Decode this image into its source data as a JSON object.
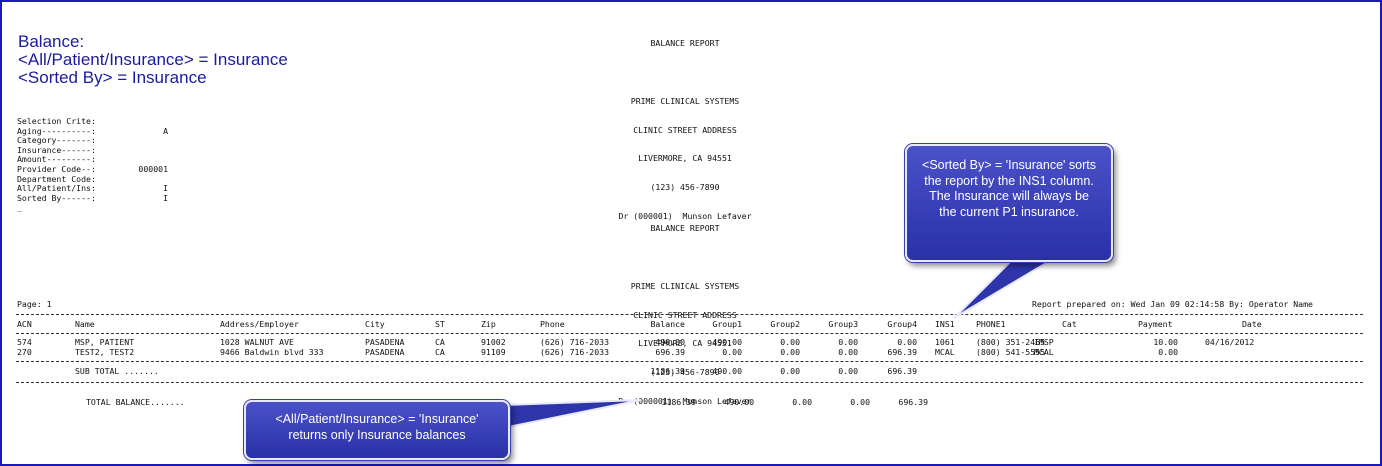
{
  "caption": {
    "line1": "Balance:",
    "line2": "<All/Patient/Insurance> = Insurance",
    "line3": "<Sorted By> = Insurance"
  },
  "header1": {
    "title": "BALANCE REPORT",
    "company": "PRIME CLINICAL SYSTEMS",
    "street": "CLINIC STREET ADDRESS",
    "city": "LIVERMORE, CA 94551",
    "phone": "(123) 456-7890",
    "doctor": "Dr (000001)  Munson Lefaver"
  },
  "header2": {
    "title": "BALANCE REPORT",
    "company": "PRIME CLINICAL SYSTEMS",
    "street": "CLINIC STREET ADDRESS",
    "city": "LIVERMORE, CA 94551",
    "phone": "(123) 456-7890",
    "doctor": "Dr (000001)  Munson Lefaver"
  },
  "criteria": [
    {
      "label": "Selection Crite:",
      "value": ""
    },
    {
      "label": "Aging----------:",
      "value": "A"
    },
    {
      "label": "Category-------:",
      "value": ""
    },
    {
      "label": "Insurance------:",
      "value": ""
    },
    {
      "label": "Amount---------:",
      "value": ""
    },
    {
      "label": "Provider Code--:",
      "value": "000001"
    },
    {
      "label": "Department Code:",
      "value": ""
    },
    {
      "label": "All/Patient/Ins:",
      "value": "I"
    },
    {
      "label": "Sorted By------:",
      "value": "I"
    },
    {
      "label": "_",
      "value": ""
    }
  ],
  "page_label": "Page: 1",
  "prepared": "Report prepared on: Wed Jan 09 02:14:58 By: Operator Name",
  "columns": {
    "acn": "ACN",
    "name": "Name",
    "address": "Address/Employer",
    "city": "City",
    "st": "ST",
    "zip": "Zip",
    "phone": "Phone",
    "balance": "Balance",
    "group1": "Group1",
    "group2": "Group2",
    "group3": "Group3",
    "group4": "Group4",
    "ins1": "INS1",
    "phone1": "PHONE1",
    "cat": "Cat",
    "payment": "Payment",
    "date": "Date"
  },
  "rows": [
    {
      "acn": "574",
      "name": "MSP, PATIENT",
      "address": "1028 WALNUT AVE",
      "city": "PASADENA",
      "st": "CA",
      "zip": "91002",
      "phone": "(626) 716-2033",
      "balance": "490.00",
      "group1": "490.00",
      "group2": "0.00",
      "group3": "0.00",
      "group4": "0.00",
      "ins1": "1061",
      "phone1": "(800) 351-2465",
      "cat": "IMSP",
      "payment": "10.00",
      "date": "04/16/2012"
    },
    {
      "acn": "270",
      "name": "TEST2, TEST2",
      "address": "9466 Baldwin blvd 333",
      "city": "PASADENA",
      "st": "CA",
      "zip": "91109",
      "phone": "(626) 716-2033",
      "balance": "696.39",
      "group1": "0.00",
      "group2": "0.00",
      "group3": "0.00",
      "group4": "696.39",
      "ins1": "MCAL",
      "phone1": "(800) 541-5555",
      "cat": "MCAL",
      "payment": "0.00",
      "date": ""
    }
  ],
  "subtotal": {
    "label": "SUB TOTAL .......",
    "balance": "1186.39",
    "group1": "490.00",
    "group2": "0.00",
    "group3": "0.00",
    "group4": "696.39"
  },
  "total": {
    "label": "TOTAL BALANCE.......",
    "balance": "1186.39",
    "group1": "490.00",
    "group2": "0.00",
    "group3": "0.00",
    "group4": "696.39"
  },
  "callouts": {
    "sorted": "<Sorted By> = 'Insurance' sorts the report by the INS1 column. The Insurance will always be the current P1 insurance.",
    "all": "<All/Patient/Insurance> = 'Insurance' returns only Insurance balances"
  },
  "colors": {
    "frame": "#1a1ab8",
    "caption": "#1a1aa0",
    "callout": "#3a41bc"
  }
}
